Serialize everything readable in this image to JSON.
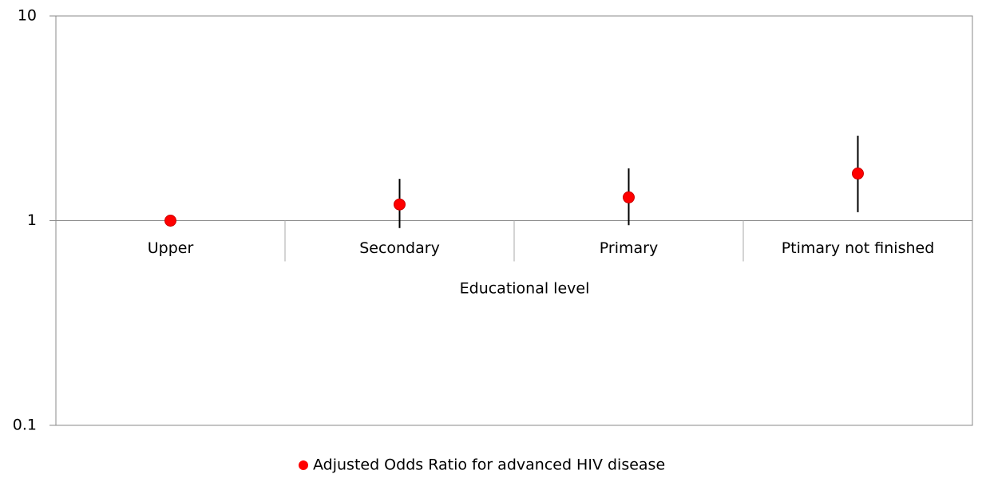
{
  "chart_data": {
    "type": "errorbar",
    "x_label": "Educational level",
    "categories": [
      "Upper",
      "Secondary",
      "Primary",
      "Ptimary not finished"
    ],
    "series": [
      {
        "name": "Adjusted Odds Ratio for advanced HIV disease",
        "color": "#ff0000",
        "values": [
          1,
          1.2,
          1.3,
          1.7
        ],
        "lower": [
          null,
          0.92,
          0.95,
          1.1
        ],
        "upper": [
          null,
          1.6,
          1.8,
          2.6
        ]
      }
    ],
    "ylim": [
      0.1,
      10
    ],
    "yticks": [
      0.1,
      1,
      10
    ],
    "log_y": true,
    "x_axis_at": 1,
    "legend": "bottom"
  }
}
